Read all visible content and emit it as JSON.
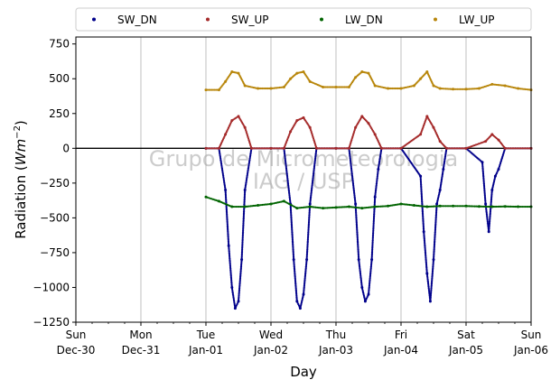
{
  "chart_data": {
    "type": "scatter",
    "title": "",
    "xlabel": "Day",
    "ylabel_main": "Radiation (",
    "ylabel_unit": "Wm",
    "ylabel_exp": "−2",
    "ylabel_close": ")",
    "watermark_line1": "Grupo de Micrometeorologia",
    "watermark_line2": "IAG / USP",
    "xlim": [
      0,
      7
    ],
    "ylim": [
      -1250,
      800
    ],
    "x_unit": "days since Sun Dec-30",
    "x_ticks": [
      {
        "value": 0,
        "day": "Sun",
        "date": "Dec-30"
      },
      {
        "value": 1,
        "day": "Mon",
        "date": "Dec-31"
      },
      {
        "value": 2,
        "day": "Tue",
        "date": "Jan-01"
      },
      {
        "value": 3,
        "day": "Wed",
        "date": "Jan-02"
      },
      {
        "value": 4,
        "day": "Thu",
        "date": "Jan-03"
      },
      {
        "value": 5,
        "day": "Fri",
        "date": "Jan-04"
      },
      {
        "value": 6,
        "day": "Sat",
        "date": "Jan-05"
      },
      {
        "value": 7,
        "day": "Sun",
        "date": "Jan-06"
      }
    ],
    "y_ticks": [
      750,
      500,
      250,
      0,
      -250,
      -500,
      -750,
      -1000,
      -1250
    ],
    "y_tick_labels": [
      "750",
      "500",
      "250",
      "0",
      "−250",
      "−500",
      "−750",
      "−1000",
      "−1250"
    ],
    "grid": "vertical",
    "legend_position": "top",
    "series": [
      {
        "name": "SW_DN",
        "color": "#00008b",
        "points": [
          [
            2.0,
            0
          ],
          [
            2.2,
            0
          ],
          [
            2.3,
            -300
          ],
          [
            2.35,
            -700
          ],
          [
            2.4,
            -1000
          ],
          [
            2.45,
            -1150
          ],
          [
            2.5,
            -1100
          ],
          [
            2.55,
            -800
          ],
          [
            2.6,
            -300
          ],
          [
            2.7,
            0
          ],
          [
            3.0,
            0
          ],
          [
            3.2,
            0
          ],
          [
            3.3,
            -400
          ],
          [
            3.35,
            -800
          ],
          [
            3.4,
            -1100
          ],
          [
            3.45,
            -1150
          ],
          [
            3.5,
            -1050
          ],
          [
            3.55,
            -800
          ],
          [
            3.6,
            -400
          ],
          [
            3.7,
            0
          ],
          [
            4.0,
            0
          ],
          [
            4.2,
            0
          ],
          [
            4.3,
            -400
          ],
          [
            4.35,
            -800
          ],
          [
            4.4,
            -1000
          ],
          [
            4.45,
            -1100
          ],
          [
            4.5,
            -1050
          ],
          [
            4.55,
            -800
          ],
          [
            4.6,
            -350
          ],
          [
            4.65,
            -150
          ],
          [
            4.7,
            0
          ],
          [
            5.0,
            0
          ],
          [
            5.3,
            -200
          ],
          [
            5.35,
            -600
          ],
          [
            5.4,
            -900
          ],
          [
            5.45,
            -1100
          ],
          [
            5.5,
            -800
          ],
          [
            5.55,
            -400
          ],
          [
            5.6,
            -300
          ],
          [
            5.65,
            -150
          ],
          [
            5.7,
            0
          ],
          [
            6.0,
            0
          ],
          [
            6.25,
            -100
          ],
          [
            6.3,
            -400
          ],
          [
            6.35,
            -600
          ],
          [
            6.4,
            -300
          ],
          [
            6.45,
            -200
          ],
          [
            6.5,
            -150
          ],
          [
            6.6,
            0
          ],
          [
            7.0,
            0
          ]
        ]
      },
      {
        "name": "SW_UP",
        "color": "#a52a2a",
        "points": [
          [
            2.0,
            0
          ],
          [
            2.2,
            0
          ],
          [
            2.3,
            100
          ],
          [
            2.4,
            200
          ],
          [
            2.5,
            230
          ],
          [
            2.6,
            150
          ],
          [
            2.7,
            0
          ],
          [
            3.0,
            0
          ],
          [
            3.2,
            0
          ],
          [
            3.3,
            120
          ],
          [
            3.4,
            200
          ],
          [
            3.5,
            220
          ],
          [
            3.6,
            150
          ],
          [
            3.7,
            0
          ],
          [
            4.0,
            0
          ],
          [
            4.2,
            0
          ],
          [
            4.3,
            150
          ],
          [
            4.4,
            230
          ],
          [
            4.5,
            180
          ],
          [
            4.6,
            100
          ],
          [
            4.7,
            0
          ],
          [
            5.0,
            0
          ],
          [
            5.3,
            100
          ],
          [
            5.4,
            230
          ],
          [
            5.5,
            150
          ],
          [
            5.6,
            50
          ],
          [
            5.7,
            0
          ],
          [
            6.0,
            0
          ],
          [
            6.3,
            50
          ],
          [
            6.4,
            100
          ],
          [
            6.5,
            60
          ],
          [
            6.6,
            0
          ],
          [
            7.0,
            0
          ]
        ]
      },
      {
        "name": "LW_DN",
        "color": "#006400",
        "points": [
          [
            2.0,
            -350
          ],
          [
            2.2,
            -380
          ],
          [
            2.4,
            -420
          ],
          [
            2.6,
            -420
          ],
          [
            2.8,
            -410
          ],
          [
            3.0,
            -400
          ],
          [
            3.2,
            -380
          ],
          [
            3.4,
            -430
          ],
          [
            3.6,
            -420
          ],
          [
            3.8,
            -430
          ],
          [
            4.0,
            -425
          ],
          [
            4.2,
            -420
          ],
          [
            4.4,
            -430
          ],
          [
            4.6,
            -420
          ],
          [
            4.8,
            -415
          ],
          [
            5.0,
            -400
          ],
          [
            5.2,
            -410
          ],
          [
            5.4,
            -420
          ],
          [
            5.6,
            -415
          ],
          [
            5.8,
            -415
          ],
          [
            6.0,
            -415
          ],
          [
            6.2,
            -418
          ],
          [
            6.4,
            -420
          ],
          [
            6.6,
            -418
          ],
          [
            6.8,
            -420
          ],
          [
            7.0,
            -420
          ]
        ]
      },
      {
        "name": "LW_UP",
        "color": "#b8860b",
        "points": [
          [
            2.0,
            420
          ],
          [
            2.2,
            420
          ],
          [
            2.3,
            480
          ],
          [
            2.4,
            550
          ],
          [
            2.5,
            540
          ],
          [
            2.6,
            450
          ],
          [
            2.8,
            430
          ],
          [
            3.0,
            430
          ],
          [
            3.2,
            440
          ],
          [
            3.3,
            500
          ],
          [
            3.4,
            540
          ],
          [
            3.5,
            550
          ],
          [
            3.6,
            480
          ],
          [
            3.8,
            440
          ],
          [
            4.0,
            440
          ],
          [
            4.2,
            440
          ],
          [
            4.3,
            510
          ],
          [
            4.4,
            550
          ],
          [
            4.5,
            540
          ],
          [
            4.6,
            450
          ],
          [
            4.8,
            430
          ],
          [
            5.0,
            430
          ],
          [
            5.2,
            450
          ],
          [
            5.3,
            500
          ],
          [
            5.4,
            550
          ],
          [
            5.5,
            450
          ],
          [
            5.6,
            430
          ],
          [
            5.8,
            425
          ],
          [
            6.0,
            425
          ],
          [
            6.2,
            430
          ],
          [
            6.4,
            460
          ],
          [
            6.6,
            450
          ],
          [
            6.8,
            430
          ],
          [
            7.0,
            420
          ]
        ]
      }
    ]
  }
}
